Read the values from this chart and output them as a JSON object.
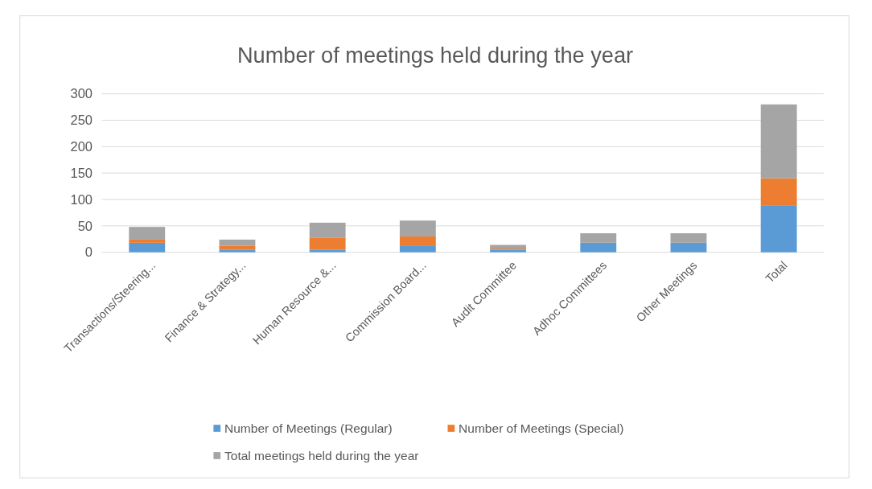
{
  "chart_data": {
    "type": "bar",
    "title": "Number of meetings held during the year",
    "stacked": true,
    "categories": [
      "Transactions/Steering...",
      "Finance & Strategy...",
      "Human Resource &...",
      "Commission Board...",
      "Audit Committee",
      "Adhoc Committees",
      "Other Meetings",
      "Total"
    ],
    "series": [
      {
        "name": "Number of Meetings (Regular)",
        "color": "#5b9bd5",
        "values": [
          18,
          5,
          5,
          13,
          5,
          18,
          18,
          88
        ]
      },
      {
        "name": "Number of Meetings (Special)",
        "color": "#ed7d31",
        "values": [
          6,
          7,
          23,
          17,
          2,
          0,
          0,
          52
        ]
      },
      {
        "name": "Total meetings held  during the year",
        "color": "#a5a5a5",
        "values": [
          24,
          12,
          28,
          30,
          7,
          18,
          18,
          140
        ]
      }
    ],
    "ylim": [
      0,
      300
    ],
    "yticks": [
      0,
      50,
      100,
      150,
      200,
      250,
      300
    ],
    "grid": "y",
    "legend": "bottom"
  }
}
